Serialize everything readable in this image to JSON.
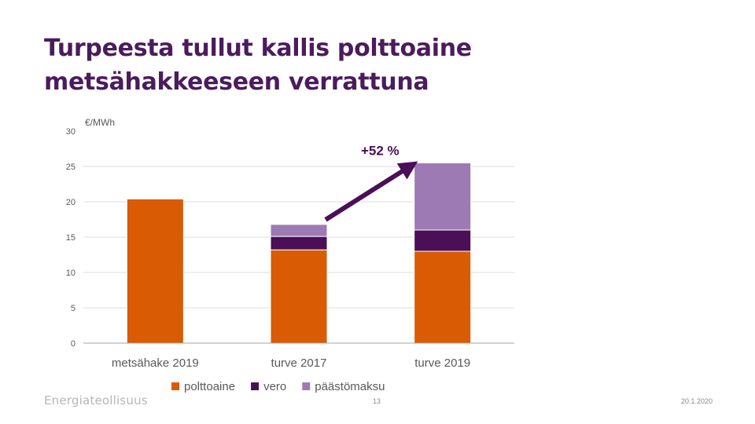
{
  "slide": {
    "title_line1": "Turpeesta tullut kallis polttoaine",
    "title_line2": "metsähakkeeseen verrattuna",
    "footer_logo": "Energiateollisuus",
    "page_number": "13",
    "date": "20.1.2020"
  },
  "chart_data": {
    "type": "bar",
    "stacked": true,
    "ylabel": "€/MWh",
    "ylim": [
      0,
      30
    ],
    "yticks": [
      0,
      5,
      10,
      15,
      20,
      25,
      30
    ],
    "grid": true,
    "categories": [
      "metsähake 2019",
      "turve 2017",
      "turve 2019"
    ],
    "series": [
      {
        "name": "polttoaine",
        "color": "#d95b04",
        "values": [
          20.4,
          13.2,
          13.0
        ]
      },
      {
        "name": "vero",
        "color": "#4a0f56",
        "values": [
          0,
          1.9,
          3.0
        ]
      },
      {
        "name": "päästömaksu",
        "color": "#9e7ab4",
        "values": [
          0,
          1.7,
          9.5
        ]
      }
    ],
    "legend_position": "bottom",
    "annotation": {
      "text": "+52 %",
      "color": "#4a0f56",
      "from_category": "turve 2017",
      "to_category": "turve 2019"
    }
  }
}
